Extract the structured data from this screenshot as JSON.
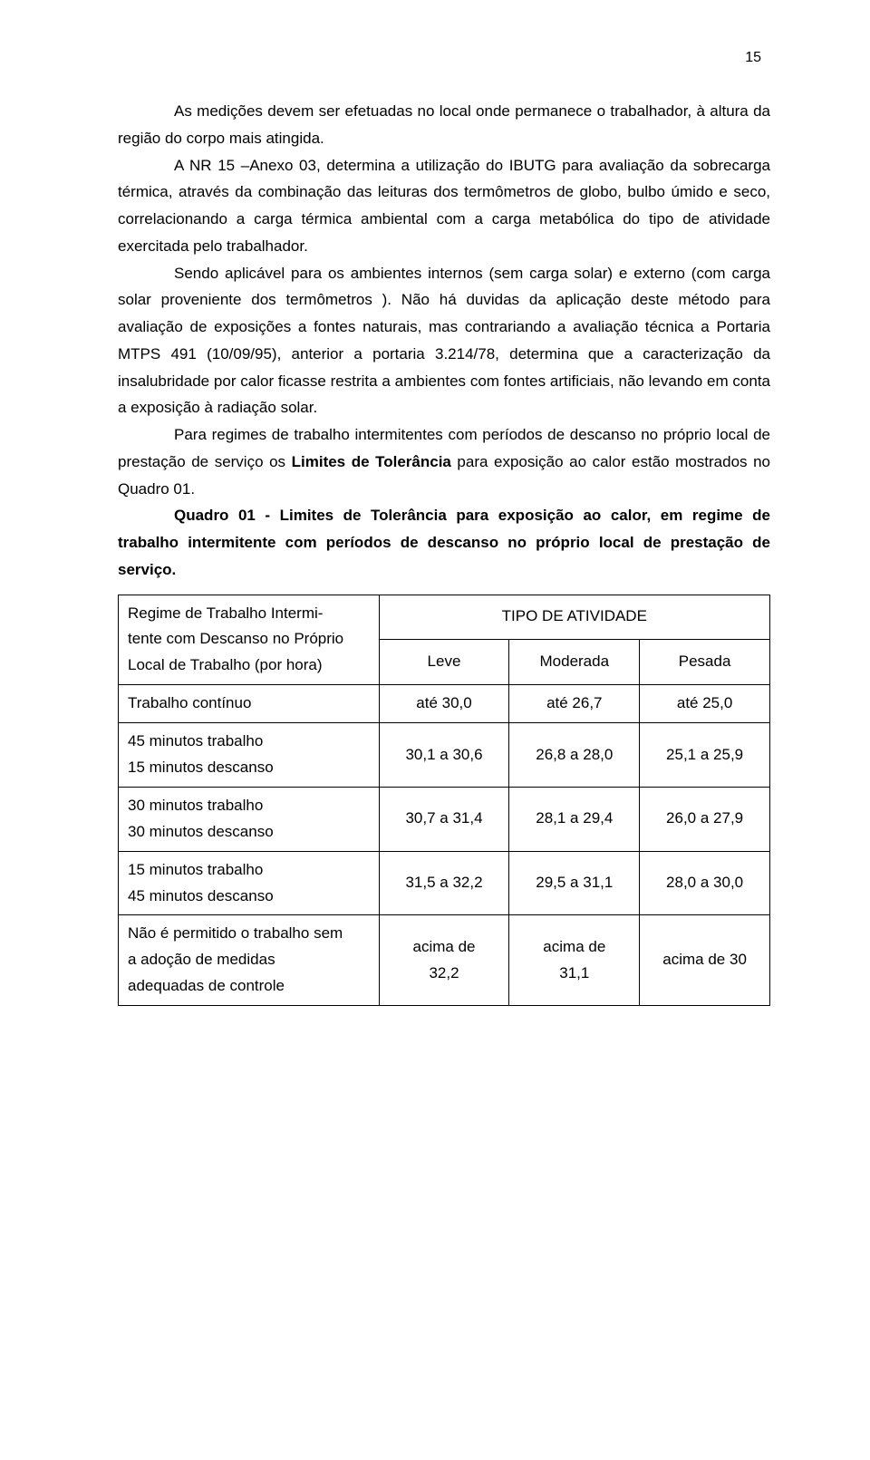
{
  "page_number": "15",
  "p1": "As medições devem ser efetuadas no local onde permanece o trabalhador, à altura da região do corpo mais atingida.",
  "p2": "A NR 15 –Anexo 03, determina a utilização do IBUTG para avaliação da sobrecarga térmica, através da combinação das leituras dos termômetros de globo, bulbo úmido e seco, correlacionando a carga térmica ambiental com a carga metabólica do tipo de atividade exercitada pelo trabalhador.",
  "p3": "Sendo aplicável para os ambientes internos (sem carga solar) e externo (com carga solar proveniente dos termômetros ). Não há duvidas da aplicação deste método para avaliação de exposições a fontes naturais, mas contrariando a avaliação técnica a Portaria MTPS 491 (10/09/95), anterior a portaria 3.214/78, determina que a caracterização da insalubridade por calor ficasse restrita a ambientes com fontes artificiais, não levando em conta a exposição à radiação solar.",
  "p4_a": "Para regimes de trabalho intermitentes com períodos de descanso no próprio local de prestação de serviço os ",
  "p4_b": "Limites de Tolerância",
  "p4_c": " para exposição ao calor estão mostrados no Quadro 01.",
  "p5": "Quadro 01 - Limites de Tolerância para exposição ao calor, em regime de trabalho intermitente com períodos de descanso no próprio local de prestação de serviço.",
  "table": {
    "header_left_l1": "Regime de Trabalho Intermi-",
    "header_left_l2": "tente com Descanso no Próprio",
    "header_left_l3": "Local de Trabalho (por hora)",
    "tipo": "TIPO DE ATIVIDADE",
    "col1": "Leve",
    "col2": "Moderada",
    "col3": "Pesada",
    "rows": [
      {
        "label": "Trabalho contínuo",
        "c1": "até 30,0",
        "c2": "até 26,7",
        "c3": "até 25,0"
      },
      {
        "label_l1": "45 minutos trabalho",
        "label_l2": "15 minutos descanso",
        "c1": "30,1 a 30,6",
        "c2": "26,8 a 28,0",
        "c3": "25,1 a 25,9"
      },
      {
        "label_l1": "30 minutos trabalho",
        "label_l2": "30 minutos descanso",
        "c1": "30,7 a 31,4",
        "c2": "28,1 a 29,4",
        "c3": "26,0 a 27,9"
      },
      {
        "label_l1": "15 minutos trabalho",
        "label_l2": "45 minutos descanso",
        "c1": "31,5 a 32,2",
        "c2": "29,5 a 31,1",
        "c3": "28,0 a 30,0"
      },
      {
        "label_l1": "Não é permitido o trabalho sem",
        "label_l2": "a adoção de medidas",
        "label_l3": "adequadas de controle",
        "c1_l1": "acima de",
        "c1_l2": "32,2",
        "c2_l1": "acima de",
        "c2_l2": "31,1",
        "c3": "acima de 30"
      }
    ]
  }
}
